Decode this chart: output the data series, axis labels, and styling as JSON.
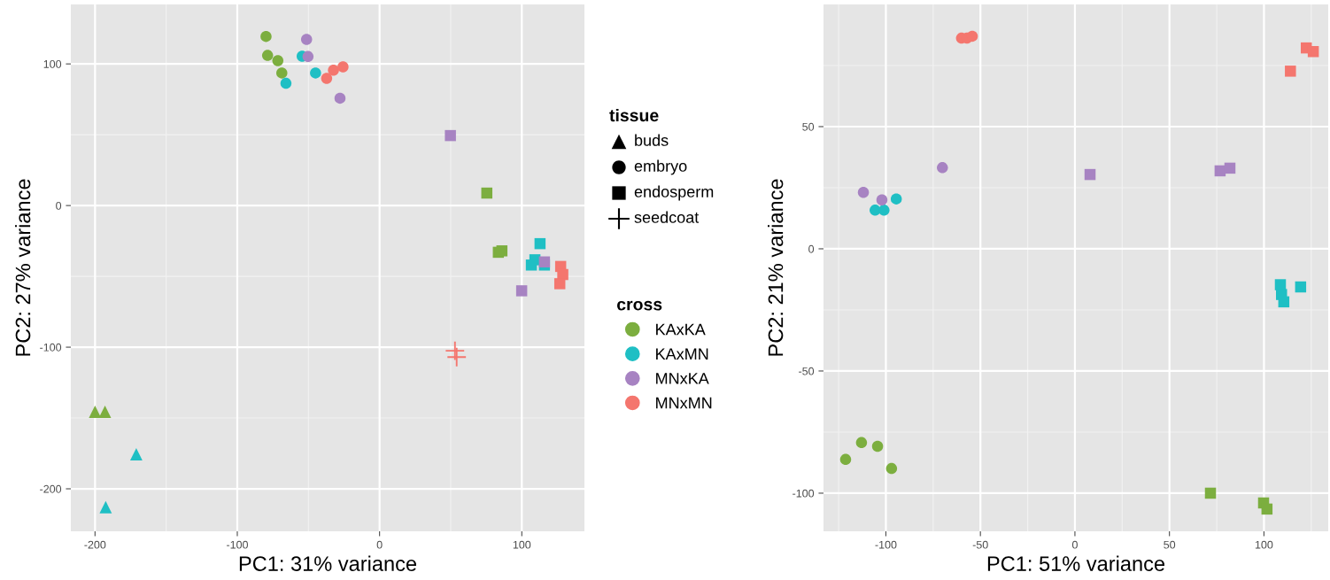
{
  "chart_data": [
    {
      "type": "scatter",
      "xlabel": "PC1: 31% variance",
      "ylabel": "PC2: 27% variance",
      "xlim": [
        -217,
        144
      ],
      "ylim": [
        -230,
        142
      ],
      "xticks": [
        -200,
        -100,
        0,
        100
      ],
      "yticks": [
        -200,
        -100,
        0,
        100
      ],
      "grid": true,
      "legend": "right",
      "legend_title": "cross",
      "annotations": [
        "tissue",
        "buds",
        "embryo",
        "endosperm",
        "seedcoat"
      ],
      "series": [
        {
          "name": "KAxKA",
          "color": "#7cae3f",
          "marker": "circle",
          "x": [
            -79.8,
            -78.7,
            -71.5,
            -68.7
          ],
          "values": [
            119.4,
            106,
            102.3,
            93.6
          ]
        },
        {
          "name": "KAxMN",
          "color": "#1fbfc4",
          "marker": "circle",
          "x": [
            -54.4,
            -65.8,
            -45
          ],
          "values": [
            105.4,
            86.3,
            93.6
          ]
        },
        {
          "name": "MNxKA",
          "color": "#a783c2",
          "marker": "circle",
          "x": [
            -51.3,
            -50.3,
            -27.8
          ],
          "values": [
            117.3,
            105.2,
            75.8
          ]
        },
        {
          "name": "MNxMN",
          "color": "#f4766e",
          "marker": "circle",
          "x": [
            -37.2,
            -32.4,
            -25.7
          ],
          "values": [
            89.8,
            95.6,
            97.9
          ]
        },
        {
          "color": "#7cae3f",
          "marker": "triangle",
          "x": [
            -200,
            -193
          ],
          "values": [
            -145.6,
            -145.6
          ]
        },
        {
          "color": "#1fbfc4",
          "marker": "triangle",
          "x": [
            -171,
            -192.5
          ],
          "values": [
            -175.6,
            -213
          ]
        },
        {
          "color": "#7cae3f",
          "marker": "square",
          "x": [
            75.4,
            83.5,
            86
          ],
          "values": [
            8.8,
            -33,
            -32
          ]
        },
        {
          "color": "#1fbfc4",
          "marker": "square",
          "x": [
            112.8,
            109.2,
            106.7,
            115.9
          ],
          "values": [
            -26.9,
            -38.3,
            -42,
            -42
          ]
        },
        {
          "color": "#a783c2",
          "marker": "square",
          "x": [
            49.8,
            115.9,
            99.9
          ],
          "values": [
            49.4,
            -39.8,
            -60.2
          ]
        },
        {
          "color": "#f4766e",
          "marker": "square",
          "x": [
            127.3,
            128.8,
            126.7
          ],
          "values": [
            -43,
            -48.7,
            -55.2
          ]
        },
        {
          "color": "#f4766e",
          "marker": "cross",
          "x": [
            53,
            54.2
          ],
          "values": [
            -102.5,
            -107
          ]
        }
      ]
    },
    {
      "type": "scatter",
      "xlabel": "PC1: 51% variance",
      "ylabel": "PC2: 21% variance",
      "xlim": [
        -133,
        134
      ],
      "ylim": [
        -115.6,
        100
      ],
      "xticks": [
        -100,
        -50,
        0,
        50,
        100
      ],
      "yticks": [
        -100,
        -50,
        0,
        50
      ],
      "grid": true,
      "series": [
        {
          "color": "#7cae3f",
          "marker": "circle",
          "x": [
            -121.3,
            -112.9,
            -104.4,
            -97
          ],
          "values": [
            -86.2,
            -79.3,
            -80.8,
            -89.9
          ]
        },
        {
          "color": "#1fbfc4",
          "marker": "circle",
          "x": [
            -94.5,
            -105.7,
            -101
          ],
          "values": [
            20.4,
            15.8,
            15.8
          ]
        },
        {
          "color": "#a783c2",
          "marker": "circle",
          "x": [
            -111.9,
            -102.1,
            -70.1
          ],
          "values": [
            23.1,
            20,
            33.2
          ]
        },
        {
          "color": "#f4766e",
          "marker": "circle",
          "x": [
            -60,
            -57.1,
            -54.3
          ],
          "values": [
            86.2,
            86.2,
            87
          ]
        },
        {
          "color": "#7cae3f",
          "marker": "square",
          "x": [
            71.7,
            99.8,
            101.6
          ],
          "values": [
            -100,
            -104,
            -106.5
          ]
        },
        {
          "color": "#1fbfc4",
          "marker": "square",
          "x": [
            108.7,
            109.3,
            110.5,
            119.4
          ],
          "values": [
            -14.7,
            -18.7,
            -21.7,
            -15.6
          ]
        },
        {
          "color": "#a783c2",
          "marker": "square",
          "x": [
            8,
            76.8,
            82
          ],
          "values": [
            30.4,
            31.9,
            33
          ]
        },
        {
          "color": "#f4766e",
          "marker": "square",
          "x": [
            122.4,
            126.1,
            114
          ],
          "values": [
            82.2,
            80.7,
            72.7
          ]
        }
      ]
    }
  ]
}
